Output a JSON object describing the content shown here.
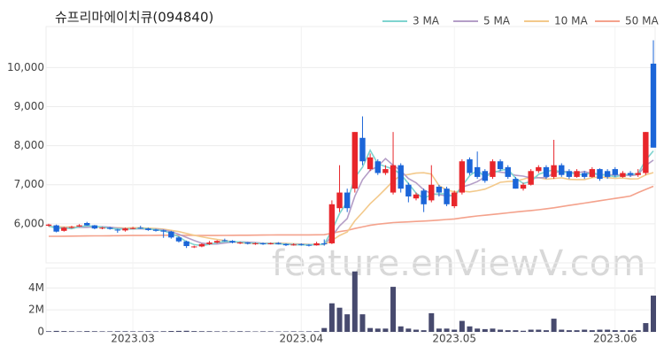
{
  "chart_data": {
    "type": "candlestick",
    "title": "슈프리마에이치큐(094840)",
    "watermark": "feature.enViewV.com",
    "up_color": "#e8262b",
    "down_color": "#1b65d8",
    "volume_color": "#474a6e",
    "grid": true,
    "categories": [
      null,
      null,
      null,
      null,
      null,
      null,
      null,
      null,
      null,
      null,
      null,
      "2023.03",
      null,
      null,
      null,
      null,
      null,
      null,
      null,
      null,
      null,
      null,
      null,
      null,
      null,
      null,
      null,
      null,
      null,
      null,
      null,
      null,
      null,
      "2023.04",
      null,
      null,
      null,
      null,
      null,
      null,
      null,
      null,
      null,
      null,
      null,
      null,
      null,
      null,
      null,
      null,
      null,
      null,
      null,
      "2023.05",
      null,
      null,
      null,
      null,
      null,
      null,
      null,
      null,
      null,
      null,
      null,
      null,
      null,
      null,
      null,
      null,
      null,
      null,
      null,
      null,
      "2023.06",
      null,
      null,
      null,
      null,
      null
    ],
    "ohlc": [
      [
        5950,
        6000,
        5930,
        5980
      ],
      [
        5960,
        5980,
        5780,
        5800
      ],
      [
        5820,
        5920,
        5800,
        5900
      ],
      [
        5900,
        5950,
        5880,
        5920
      ],
      [
        5930,
        5990,
        5920,
        5960
      ],
      [
        6020,
        6050,
        5950,
        5960
      ],
      [
        5960,
        5970,
        5860,
        5880
      ],
      [
        5880,
        5920,
        5860,
        5900
      ],
      [
        5900,
        5920,
        5850,
        5870
      ],
      [
        5850,
        5870,
        5770,
        5830
      ],
      [
        5830,
        5900,
        5800,
        5880
      ],
      [
        5880,
        5920,
        5860,
        5890
      ],
      [
        5900,
        5950,
        5870,
        5880
      ],
      [
        5880,
        5900,
        5820,
        5840
      ],
      [
        5850,
        5870,
        5800,
        5820
      ],
      [
        5830,
        5850,
        5640,
        5800
      ],
      [
        5800,
        5820,
        5620,
        5650
      ],
      [
        5650,
        5680,
        5520,
        5550
      ],
      [
        5550,
        5570,
        5380,
        5430
      ],
      [
        5400,
        5440,
        5380,
        5420
      ],
      [
        5420,
        5500,
        5400,
        5480
      ],
      [
        5480,
        5560,
        5460,
        5520
      ],
      [
        5520,
        5580,
        5500,
        5560
      ],
      [
        5580,
        5620,
        5540,
        5560
      ],
      [
        5560,
        5580,
        5500,
        5520
      ],
      [
        5500,
        5540,
        5480,
        5520
      ],
      [
        5520,
        5530,
        5470,
        5490
      ],
      [
        5480,
        5520,
        5460,
        5500
      ],
      [
        5500,
        5520,
        5460,
        5480
      ],
      [
        5480,
        5520,
        5470,
        5500
      ],
      [
        5510,
        5530,
        5470,
        5480
      ],
      [
        5480,
        5500,
        5430,
        5450
      ],
      [
        5450,
        5500,
        5440,
        5470
      ],
      [
        5480,
        5500,
        5440,
        5460
      ],
      [
        5460,
        5480,
        5420,
        5450
      ],
      [
        5450,
        5540,
        5440,
        5500
      ],
      [
        5500,
        5600,
        5440,
        5480
      ],
      [
        5500,
        6600,
        5480,
        6500
      ],
      [
        6400,
        7500,
        6300,
        6800
      ],
      [
        6800,
        6900,
        6300,
        6400
      ],
      [
        6900,
        8350,
        6800,
        8350
      ],
      [
        8200,
        8750,
        7500,
        7600
      ],
      [
        7400,
        7800,
        7350,
        7700
      ],
      [
        7600,
        7650,
        7250,
        7300
      ],
      [
        7300,
        7500,
        7250,
        7400
      ],
      [
        6800,
        8350,
        6750,
        7500
      ],
      [
        7500,
        7550,
        6800,
        6900
      ],
      [
        7000,
        7050,
        6550,
        6700
      ],
      [
        6650,
        6800,
        6600,
        6750
      ],
      [
        6850,
        6900,
        6300,
        6500
      ],
      [
        6600,
        7500,
        6550,
        7000
      ],
      [
        6950,
        7000,
        6700,
        6800
      ],
      [
        6900,
        6950,
        6450,
        6500
      ],
      [
        6450,
        6850,
        6400,
        6800
      ],
      [
        6800,
        7650,
        6750,
        7600
      ],
      [
        7650,
        7700,
        7250,
        7300
      ],
      [
        7450,
        7850,
        7150,
        7200
      ],
      [
        7350,
        7400,
        7050,
        7100
      ],
      [
        7200,
        7650,
        7150,
        7600
      ],
      [
        7600,
        7650,
        7350,
        7400
      ],
      [
        7450,
        7500,
        7150,
        7200
      ],
      [
        7150,
        7200,
        6900,
        6900
      ],
      [
        6900,
        7050,
        6850,
        7000
      ],
      [
        7000,
        7400,
        6980,
        7350
      ],
      [
        7350,
        7500,
        7300,
        7450
      ],
      [
        7450,
        7500,
        7150,
        7200
      ],
      [
        7200,
        8150,
        7150,
        7500
      ],
      [
        7500,
        7550,
        7200,
        7250
      ],
      [
        7350,
        7400,
        7150,
        7200
      ],
      [
        7200,
        7400,
        7180,
        7350
      ],
      [
        7300,
        7350,
        7150,
        7200
      ],
      [
        7200,
        7450,
        7180,
        7400
      ],
      [
        7400,
        7420,
        7100,
        7150
      ],
      [
        7350,
        7400,
        7150,
        7200
      ],
      [
        7400,
        7450,
        7200,
        7250
      ],
      [
        7200,
        7350,
        7180,
        7300
      ],
      [
        7300,
        7350,
        7200,
        7250
      ],
      [
        7250,
        7400,
        7200,
        7300
      ],
      [
        7300,
        8350,
        7250,
        8350
      ],
      [
        10100,
        10700,
        7950,
        7950
      ]
    ],
    "volume": [
      60000,
      90000,
      70000,
      60000,
      50000,
      70000,
      60000,
      50000,
      50000,
      60000,
      60000,
      50000,
      50000,
      60000,
      50000,
      60000,
      80000,
      90000,
      100000,
      70000,
      60000,
      60000,
      50000,
      50000,
      50000,
      60000,
      50000,
      40000,
      50000,
      50000,
      40000,
      40000,
      50000,
      40000,
      50000,
      60000,
      350000,
      2600000,
      2200000,
      1600000,
      5500000,
      1600000,
      350000,
      300000,
      300000,
      4100000,
      500000,
      300000,
      200000,
      150000,
      1700000,
      300000,
      300000,
      200000,
      1000000,
      500000,
      300000,
      250000,
      300000,
      200000,
      150000,
      150000,
      100000,
      200000,
      200000,
      150000,
      1200000,
      200000,
      150000,
      150000,
      200000,
      150000,
      200000,
      200000,
      150000,
      150000,
      150000,
      150000,
      800000,
      3300000
    ],
    "ylim": [
      5000,
      11050
    ],
    "yticks": [
      {
        "value": 6000,
        "label": "6,000"
      },
      {
        "value": 7000,
        "label": "7,000"
      },
      {
        "value": 8000,
        "label": "8,000"
      },
      {
        "value": 9000,
        "label": "9,000"
      },
      {
        "value": 10000,
        "label": "10,000"
      }
    ],
    "volume_ylim": [
      0,
      5800000
    ],
    "volume_yticks": [
      0,
      {
        "value": 2000000,
        "label": "2M"
      },
      {
        "value": 4000000,
        "label": "4M"
      }
    ],
    "series": [
      {
        "name": "3 MA",
        "color": "#7fd4cf",
        "values": [
          5950,
          5880,
          5893,
          5873,
          5927,
          5947,
          5933,
          5913,
          5883,
          5867,
          5860,
          5867,
          5883,
          5870,
          5847,
          5820,
          5757,
          5667,
          5543,
          5467,
          5443,
          5473,
          5520,
          5547,
          5547,
          5533,
          5510,
          5503,
          5490,
          5493,
          5487,
          5477,
          5467,
          5460,
          5460,
          5470,
          5477,
          5827,
          6260,
          6567,
          7183,
          7450,
          7883,
          7533,
          7467,
          7400,
          7267,
          7033,
          6783,
          6650,
          6750,
          6767,
          6767,
          6700,
          6967,
          7233,
          7367,
          7200,
          7300,
          7367,
          7400,
          7167,
          7033,
          7083,
          7267,
          7333,
          7383,
          7317,
          7317,
          7267,
          7250,
          7317,
          7250,
          7250,
          7200,
          7250,
          7267,
          7283,
          7633,
          7867
        ]
      },
      {
        "name": "5 MA",
        "color": "#b49ec7",
        "values": [
          5940,
          5900,
          5900,
          5890,
          5912,
          5908,
          5924,
          5924,
          5914,
          5888,
          5872,
          5870,
          5870,
          5864,
          5862,
          5846,
          5798,
          5732,
          5650,
          5570,
          5506,
          5480,
          5482,
          5508,
          5532,
          5536,
          5530,
          5518,
          5502,
          5498,
          5490,
          5482,
          5476,
          5472,
          5462,
          5466,
          5472,
          5678,
          5946,
          6136,
          6706,
          7130,
          7370,
          7470,
          7670,
          7500,
          7360,
          7160,
          7050,
          6870,
          6770,
          6750,
          6710,
          6720,
          6940,
          7000,
          7080,
          7200,
          7360,
          7320,
          7300,
          7240,
          7220,
          7170,
          7180,
          7180,
          7300,
          7350,
          7320,
          7300,
          7340,
          7280,
          7260,
          7260,
          7240,
          7260,
          7230,
          7260,
          7490,
          7630
        ]
      },
      {
        "name": "10 MA",
        "color": "#f3c98b",
        "values": [
          5930,
          5925,
          5920,
          5915,
          5915,
          5915,
          5915,
          5910,
          5905,
          5900,
          5890,
          5899,
          5897,
          5889,
          5879,
          5863,
          5832,
          5799,
          5752,
          5707,
          5667,
          5630,
          5598,
          5572,
          5542,
          5514,
          5498,
          5493,
          5498,
          5506,
          5506,
          5499,
          5490,
          5480,
          5473,
          5471,
          5470,
          5570,
          5700,
          5790,
          6077,
          6291,
          6514,
          6698,
          6893,
          7097,
          7242,
          7262,
          7297,
          7307,
          7272,
          6977,
          6867,
          6817,
          6837,
          6817,
          6847,
          6887,
          6972,
          7062,
          7082,
          7092,
          7142,
          7197,
          7182,
          7142,
          7162,
          7177,
          7137,
          7132,
          7132,
          7182,
          7197,
          7182,
          7162,
          7172,
          7147,
          7152,
          7252,
          7312
        ]
      },
      {
        "name": "50 MA",
        "color": "#f4a28c",
        "values": [
          5680,
          5680,
          5682,
          5684,
          5686,
          5688,
          5690,
          5692,
          5694,
          5696,
          5698,
          5700,
          5700,
          5702,
          5704,
          5706,
          5706,
          5706,
          5704,
          5702,
          5700,
          5700,
          5700,
          5702,
          5704,
          5706,
          5708,
          5710,
          5712,
          5714,
          5716,
          5716,
          5716,
          5716,
          5716,
          5718,
          5720,
          5760,
          5800,
          5830,
          5880,
          5920,
          5960,
          5990,
          6010,
          6030,
          6040,
          6050,
          6060,
          6070,
          6080,
          6095,
          6110,
          6125,
          6150,
          6175,
          6200,
          6220,
          6240,
          6260,
          6280,
          6300,
          6320,
          6340,
          6360,
          6385,
          6410,
          6440,
          6470,
          6500,
          6530,
          6560,
          6590,
          6620,
          6650,
          6680,
          6710,
          6800,
          6880,
          6960
        ]
      }
    ]
  }
}
